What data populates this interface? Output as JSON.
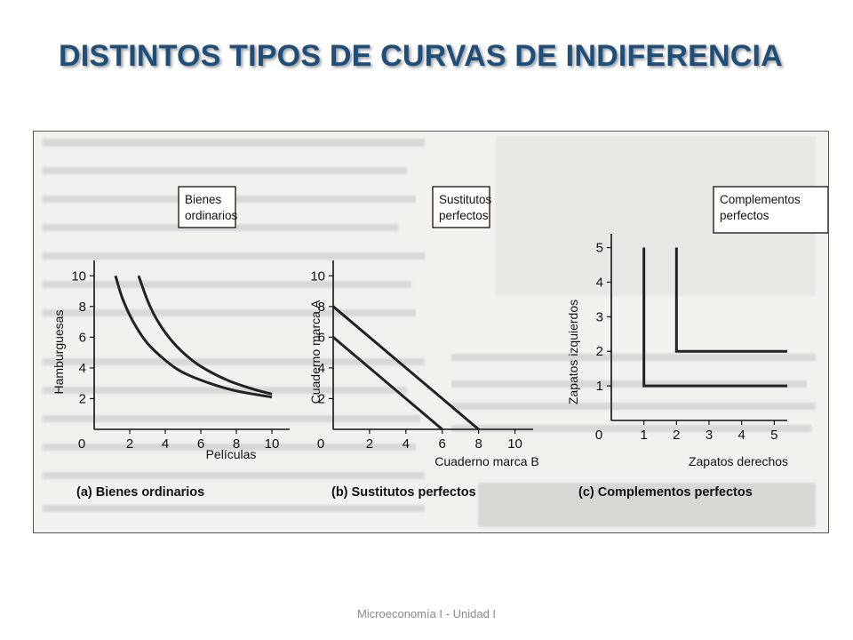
{
  "slide": {
    "title": "DISTINTOS TIPOS DE CURVAS DE INDIFERENCIA",
    "footer": "Microeconomía I - Unidad I"
  },
  "colors": {
    "title": "#1f4e79",
    "curve": "#222222",
    "figure_bg": "#f3f1ee"
  },
  "chart_data": [
    {
      "type": "line",
      "caption": "(a) Bienes ordinarios",
      "box_label": [
        "Bienes",
        "ordinarios"
      ],
      "xlabel": "Películas",
      "ylabel": "Hamburguesas",
      "xlim": [
        0,
        11
      ],
      "ylim": [
        0,
        11
      ],
      "xticks": [
        0,
        2,
        4,
        6,
        8,
        10
      ],
      "yticks": [
        2,
        4,
        6,
        8,
        10
      ],
      "series": [
        {
          "x": [
            1.2,
            1.6,
            2.2,
            3,
            4,
            5,
            6.5,
            8,
            10
          ],
          "y": [
            10,
            8.5,
            7,
            5.6,
            4.5,
            3.7,
            3,
            2.5,
            2.1
          ]
        },
        {
          "x": [
            2.5,
            3,
            3.5,
            4.2,
            5,
            6,
            7.5,
            9,
            10
          ],
          "y": [
            10,
            8.4,
            7.2,
            6,
            5,
            4.1,
            3.2,
            2.6,
            2.3
          ]
        }
      ]
    },
    {
      "type": "line",
      "caption": "(b) Sustitutos perfectos",
      "box_label": [
        "Sustitutos",
        "perfectos"
      ],
      "xlabel": "Cuaderno marca B",
      "ylabel": "Cuaderno marca A",
      "xlim": [
        0,
        11
      ],
      "ylim": [
        0,
        11
      ],
      "xticks": [
        0,
        2,
        4,
        6,
        8,
        10
      ],
      "yticks": [
        2,
        4,
        6,
        8,
        10
      ],
      "series": [
        {
          "x": [
            0,
            6
          ],
          "y": [
            6,
            0
          ]
        },
        {
          "x": [
            0,
            8
          ],
          "y": [
            8,
            0
          ]
        }
      ]
    },
    {
      "type": "line",
      "caption": "(c) Complementos perfectos",
      "box_label": [
        "Complementos",
        "perfectos"
      ],
      "xlabel": "Zapatos derechos",
      "ylabel": "Zapatos izquierdos",
      "xlim": [
        0,
        5.4
      ],
      "ylim": [
        0,
        5.4
      ],
      "xticks": [
        0,
        1,
        2,
        3,
        4,
        5
      ],
      "yticks": [
        1,
        2,
        3,
        4,
        5
      ],
      "series": [
        {
          "x": [
            1,
            1,
            5.4
          ],
          "y": [
            5,
            1,
            1
          ]
        },
        {
          "x": [
            2,
            2,
            5.4
          ],
          "y": [
            5,
            2,
            2
          ]
        }
      ]
    }
  ]
}
